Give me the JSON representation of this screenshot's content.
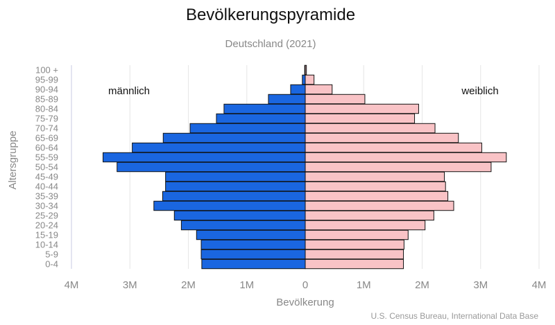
{
  "title": "Bevölkerungspyramide",
  "subtitle": "Deutschland (2021)",
  "source": "U.S. Census Bureau, International Data Base",
  "chart_data": {
    "type": "bar",
    "orientation": "horizontal-pyramid",
    "xlabel": "Bevölkerung",
    "ylabel": "Altersgruppe",
    "xlim": [
      -4000000,
      4000000
    ],
    "xticks": [
      {
        "value": -4000000,
        "label": "4M"
      },
      {
        "value": -3000000,
        "label": "3M"
      },
      {
        "value": -2000000,
        "label": "2M"
      },
      {
        "value": -1000000,
        "label": "1M"
      },
      {
        "value": 0,
        "label": "0"
      },
      {
        "value": 1000000,
        "label": "1M"
      },
      {
        "value": 2000000,
        "label": "2M"
      },
      {
        "value": 3000000,
        "label": "3M"
      },
      {
        "value": 4000000,
        "label": "4M"
      }
    ],
    "grid": true,
    "categories": [
      "0-4",
      "5-9",
      "10-14",
      "15-19",
      "20-24",
      "25-29",
      "30-34",
      "35-39",
      "40-44",
      "45-49",
      "50-54",
      "55-59",
      "60-64",
      "65-69",
      "70-74",
      "75-79",
      "80-84",
      "85-89",
      "90-94",
      "95-99",
      "100 +"
    ],
    "series": [
      {
        "name": "männlich",
        "color": "#1a66e0",
        "values": [
          1770000,
          1780000,
          1780000,
          1860000,
          2120000,
          2240000,
          2590000,
          2440000,
          2390000,
          2390000,
          3220000,
          3460000,
          2960000,
          2430000,
          1970000,
          1520000,
          1390000,
          630000,
          250000,
          50000,
          10000
        ]
      },
      {
        "name": "weiblich",
        "color": "#f9c3c6",
        "values": [
          1680000,
          1680000,
          1690000,
          1760000,
          2050000,
          2200000,
          2540000,
          2440000,
          2400000,
          2380000,
          3180000,
          3440000,
          3020000,
          2620000,
          2220000,
          1870000,
          1940000,
          1020000,
          460000,
          150000,
          20000
        ]
      }
    ]
  }
}
